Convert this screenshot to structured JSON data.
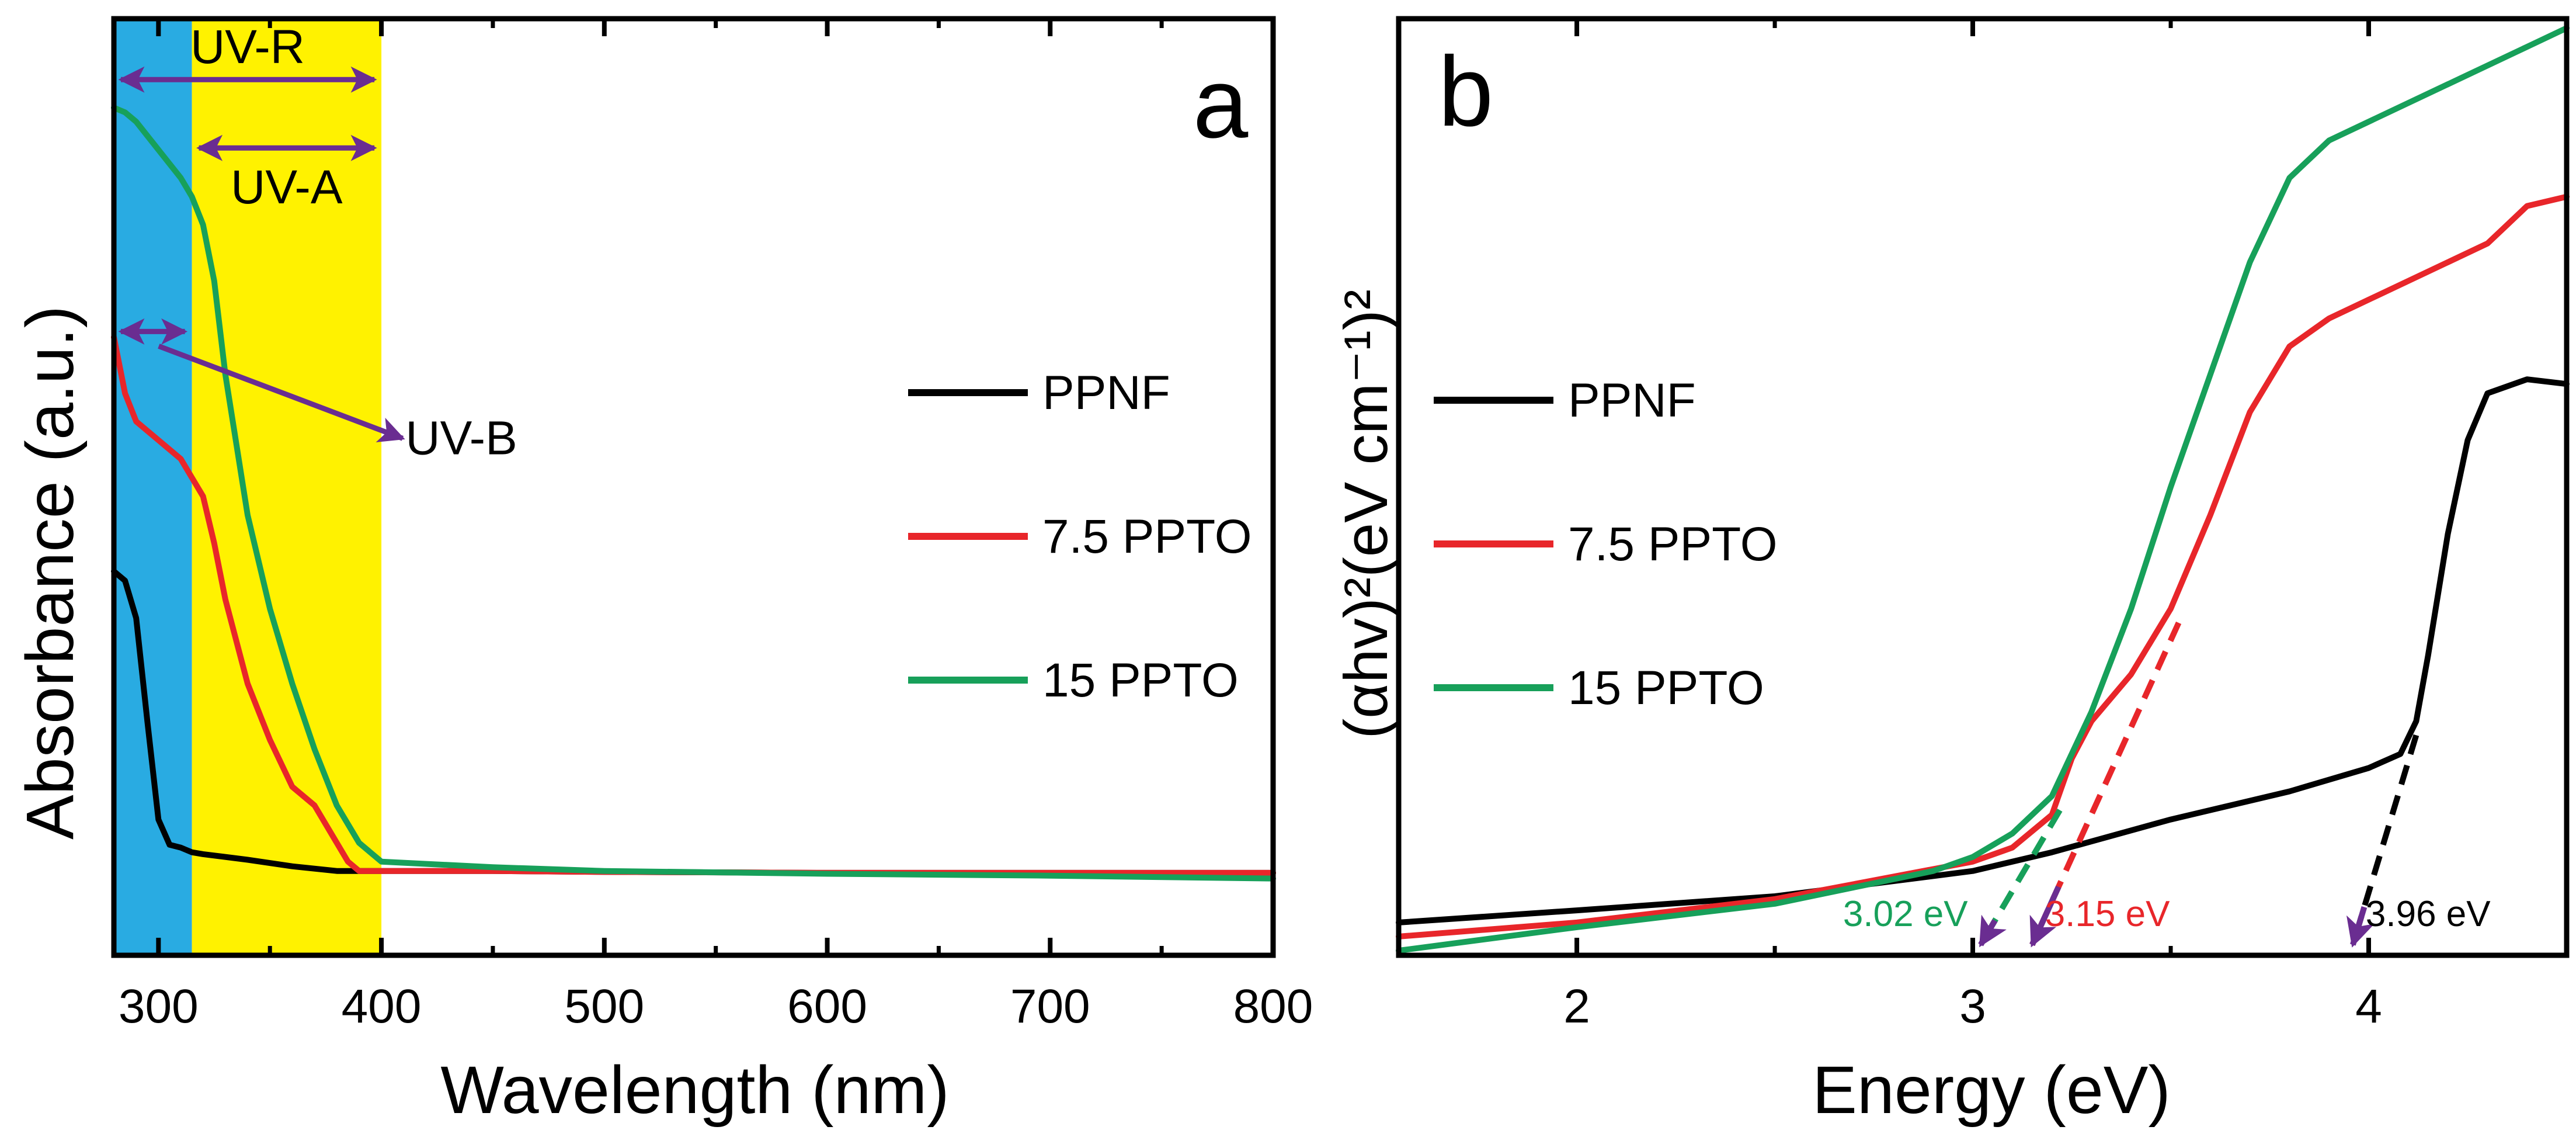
{
  "chart_data": [
    {
      "type": "line",
      "panel_label": "a",
      "xlabel": "Wavelength (nm)",
      "ylabel": "Absorbance (a.u.)",
      "xlim": [
        280,
        800
      ],
      "ylim": [
        0,
        1.0
      ],
      "x_ticks": [
        300,
        400,
        500,
        600,
        700,
        800
      ],
      "x_tick_labels": [
        "300",
        "400",
        "500",
        "600",
        "700",
        "800"
      ],
      "legend": {
        "placement": "center-right",
        "entries": [
          "PPNF",
          "7.5 PPTO",
          "15 PPTO"
        ]
      },
      "bands": [
        {
          "name": "UV-B band",
          "x_range": [
            280,
            315
          ],
          "color": "#29abe2"
        },
        {
          "name": "UV-A band",
          "x_range": [
            315,
            400
          ],
          "color": "#fff200"
        }
      ],
      "range_annotations": [
        {
          "label": "UV-R",
          "x_range": [
            280,
            400
          ],
          "y": 0.935
        },
        {
          "label": "UV-A",
          "x_range": [
            315,
            400
          ],
          "y": 0.862
        },
        {
          "label": "UV-B",
          "x_range": [
            280,
            315
          ],
          "y": 0.666,
          "pointer_to": [
            420,
            0.555
          ]
        }
      ],
      "annotation_color": "#6a2d91",
      "series": [
        {
          "name": "PPNF",
          "color": "#000000",
          "x": [
            280,
            285,
            290,
            295,
            300,
            305,
            310,
            315,
            320,
            340,
            360,
            380,
            400,
            450,
            500,
            600,
            700,
            800
          ],
          "y": [
            0.41,
            0.4,
            0.36,
            0.25,
            0.145,
            0.118,
            0.115,
            0.11,
            0.108,
            0.102,
            0.095,
            0.09,
            0.09,
            0.09,
            0.089,
            0.088,
            0.088,
            0.088
          ]
        },
        {
          "name": "7.5 PPTO",
          "color": "#e8262a",
          "x": [
            280,
            285,
            290,
            300,
            310,
            315,
            320,
            325,
            330,
            340,
            350,
            360,
            370,
            380,
            385,
            390,
            400,
            450,
            500,
            600,
            700,
            800
          ],
          "y": [
            0.66,
            0.6,
            0.57,
            0.55,
            0.53,
            0.51,
            0.49,
            0.44,
            0.38,
            0.29,
            0.23,
            0.18,
            0.16,
            0.12,
            0.1,
            0.09,
            0.09,
            0.09,
            0.089,
            0.088,
            0.088,
            0.088
          ]
        },
        {
          "name": "15 PPTO",
          "color": "#17a05a",
          "x": [
            280,
            285,
            290,
            300,
            310,
            315,
            320,
            325,
            330,
            340,
            350,
            360,
            370,
            380,
            390,
            400,
            450,
            500,
            600,
            700,
            800
          ],
          "y": [
            0.905,
            0.9,
            0.89,
            0.86,
            0.83,
            0.81,
            0.78,
            0.72,
            0.62,
            0.47,
            0.37,
            0.29,
            0.22,
            0.16,
            0.12,
            0.1,
            0.094,
            0.09,
            0.087,
            0.085,
            0.082
          ]
        }
      ]
    },
    {
      "type": "line",
      "panel_label": "b",
      "xlabel": "Energy (eV)",
      "ylabel": "(αhv)²(eV cm⁻¹)²",
      "xlim": [
        1.55,
        4.5
      ],
      "ylim": [
        0,
        1.0
      ],
      "x_ticks": [
        2,
        3,
        4
      ],
      "x_tick_labels": [
        "2",
        "3",
        "4"
      ],
      "legend": {
        "placement": "center-left",
        "entries": [
          "PPNF",
          "7.5 PPTO",
          "15 PPTO"
        ]
      },
      "band_gaps": [
        {
          "label": "3.02 eV",
          "color": "#17a05a",
          "x_intercept": 3.02,
          "fit_from": [
            3.22,
            0.155
          ]
        },
        {
          "label": "3.15 eV",
          "color": "#e8262a",
          "x_intercept": 3.15,
          "fit_from": [
            3.52,
            0.355
          ]
        },
        {
          "label": "3.96 eV",
          "color": "#000000",
          "x_intercept": 3.96,
          "fit_from": [
            4.12,
            0.235
          ]
        }
      ],
      "arrow_color": "#6a2d91",
      "series": [
        {
          "name": "PPNF",
          "color": "#000000",
          "x": [
            1.55,
            2.0,
            2.5,
            3.0,
            3.2,
            3.5,
            3.8,
            4.0,
            4.08,
            4.12,
            4.15,
            4.2,
            4.25,
            4.3,
            4.4,
            4.5
          ],
          "y": [
            0.035,
            0.048,
            0.063,
            0.09,
            0.11,
            0.145,
            0.175,
            0.2,
            0.215,
            0.25,
            0.32,
            0.45,
            0.55,
            0.6,
            0.615,
            0.61
          ]
        },
        {
          "name": "7.5 PPTO",
          "color": "#e8262a",
          "x": [
            1.55,
            2.0,
            2.5,
            3.0,
            3.1,
            3.2,
            3.25,
            3.3,
            3.4,
            3.5,
            3.6,
            3.7,
            3.8,
            3.9,
            4.0,
            4.2,
            4.3,
            4.35,
            4.4,
            4.5
          ],
          "y": [
            0.02,
            0.035,
            0.06,
            0.1,
            0.115,
            0.15,
            0.21,
            0.25,
            0.3,
            0.37,
            0.47,
            0.58,
            0.65,
            0.68,
            0.7,
            0.74,
            0.76,
            0.78,
            0.8,
            0.81
          ]
        },
        {
          "name": "15 PPTO",
          "color": "#17a05a",
          "x": [
            1.55,
            2.0,
            2.5,
            2.9,
            3.0,
            3.1,
            3.2,
            3.3,
            3.4,
            3.5,
            3.6,
            3.7,
            3.8,
            3.9,
            4.0,
            4.2,
            4.4,
            4.5
          ],
          "y": [
            0.005,
            0.03,
            0.055,
            0.09,
            0.105,
            0.13,
            0.17,
            0.26,
            0.37,
            0.5,
            0.62,
            0.74,
            0.83,
            0.87,
            0.89,
            0.93,
            0.97,
            0.99
          ]
        }
      ]
    }
  ]
}
